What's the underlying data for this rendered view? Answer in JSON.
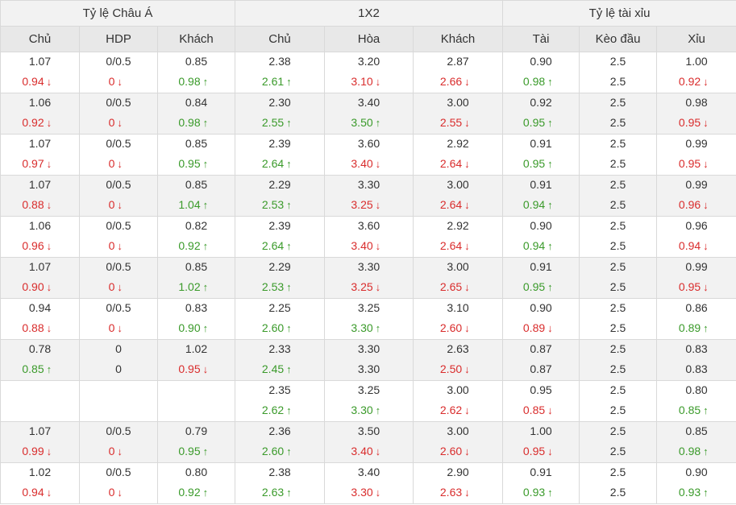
{
  "header": {
    "groups": [
      "Tỷ lệ Châu Á",
      "1X2",
      "Tỷ lệ tài xỉu"
    ],
    "columns": [
      "Chủ",
      "HDP",
      "Khách",
      "Chủ",
      "Hòa",
      "Khách",
      "Tài",
      "Kèo đầu",
      "Xỉu"
    ]
  },
  "colors": {
    "up": "#3a9a2a",
    "down": "#d92c2c",
    "odd_row": "#f2f2f2",
    "header_bg": "#e8e8e8"
  },
  "icons": {
    "up": "arrow-up-icon",
    "down": "arrow-down-icon"
  },
  "rows": [
    [
      {
        "o": "1.07",
        "c": "0.94",
        "d": "down"
      },
      {
        "o": "0/0.5",
        "c": "0",
        "d": "down"
      },
      {
        "o": "0.85",
        "c": "0.98",
        "d": "up"
      },
      {
        "o": "2.38",
        "c": "2.61",
        "d": "up"
      },
      {
        "o": "3.20",
        "c": "3.10",
        "d": "down"
      },
      {
        "o": "2.87",
        "c": "2.66",
        "d": "down"
      },
      {
        "o": "0.90",
        "c": "0.98",
        "d": "up"
      },
      {
        "o": "2.5",
        "c": "2.5",
        "d": ""
      },
      {
        "o": "1.00",
        "c": "0.92",
        "d": "down"
      }
    ],
    [
      {
        "o": "1.06",
        "c": "0.92",
        "d": "down"
      },
      {
        "o": "0/0.5",
        "c": "0",
        "d": "down"
      },
      {
        "o": "0.84",
        "c": "0.98",
        "d": "up"
      },
      {
        "o": "2.30",
        "c": "2.55",
        "d": "up"
      },
      {
        "o": "3.40",
        "c": "3.50",
        "d": "up"
      },
      {
        "o": "3.00",
        "c": "2.55",
        "d": "down"
      },
      {
        "o": "0.92",
        "c": "0.95",
        "d": "up"
      },
      {
        "o": "2.5",
        "c": "2.5",
        "d": ""
      },
      {
        "o": "0.98",
        "c": "0.95",
        "d": "down"
      }
    ],
    [
      {
        "o": "1.07",
        "c": "0.97",
        "d": "down"
      },
      {
        "o": "0/0.5",
        "c": "0",
        "d": "down"
      },
      {
        "o": "0.85",
        "c": "0.95",
        "d": "up"
      },
      {
        "o": "2.39",
        "c": "2.64",
        "d": "up"
      },
      {
        "o": "3.60",
        "c": "3.40",
        "d": "down"
      },
      {
        "o": "2.92",
        "c": "2.64",
        "d": "down"
      },
      {
        "o": "0.91",
        "c": "0.95",
        "d": "up"
      },
      {
        "o": "2.5",
        "c": "2.5",
        "d": ""
      },
      {
        "o": "0.99",
        "c": "0.95",
        "d": "down"
      }
    ],
    [
      {
        "o": "1.07",
        "c": "0.88",
        "d": "down"
      },
      {
        "o": "0/0.5",
        "c": "0",
        "d": "down"
      },
      {
        "o": "0.85",
        "c": "1.04",
        "d": "up"
      },
      {
        "o": "2.29",
        "c": "2.53",
        "d": "up"
      },
      {
        "o": "3.30",
        "c": "3.25",
        "d": "down"
      },
      {
        "o": "3.00",
        "c": "2.64",
        "d": "down"
      },
      {
        "o": "0.91",
        "c": "0.94",
        "d": "up"
      },
      {
        "o": "2.5",
        "c": "2.5",
        "d": ""
      },
      {
        "o": "0.99",
        "c": "0.96",
        "d": "down"
      }
    ],
    [
      {
        "o": "1.06",
        "c": "0.96",
        "d": "down"
      },
      {
        "o": "0/0.5",
        "c": "0",
        "d": "down"
      },
      {
        "o": "0.82",
        "c": "0.92",
        "d": "up"
      },
      {
        "o": "2.39",
        "c": "2.64",
        "d": "up"
      },
      {
        "o": "3.60",
        "c": "3.40",
        "d": "down"
      },
      {
        "o": "2.92",
        "c": "2.64",
        "d": "down"
      },
      {
        "o": "0.90",
        "c": "0.94",
        "d": "up"
      },
      {
        "o": "2.5",
        "c": "2.5",
        "d": ""
      },
      {
        "o": "0.96",
        "c": "0.94",
        "d": "down"
      }
    ],
    [
      {
        "o": "1.07",
        "c": "0.90",
        "d": "down"
      },
      {
        "o": "0/0.5",
        "c": "0",
        "d": "down"
      },
      {
        "o": "0.85",
        "c": "1.02",
        "d": "up"
      },
      {
        "o": "2.29",
        "c": "2.53",
        "d": "up"
      },
      {
        "o": "3.30",
        "c": "3.25",
        "d": "down"
      },
      {
        "o": "3.00",
        "c": "2.65",
        "d": "down"
      },
      {
        "o": "0.91",
        "c": "0.95",
        "d": "up"
      },
      {
        "o": "2.5",
        "c": "2.5",
        "d": ""
      },
      {
        "o": "0.99",
        "c": "0.95",
        "d": "down"
      }
    ],
    [
      {
        "o": "0.94",
        "c": "0.88",
        "d": "down"
      },
      {
        "o": "0/0.5",
        "c": "0",
        "d": "down"
      },
      {
        "o": "0.83",
        "c": "0.90",
        "d": "up"
      },
      {
        "o": "2.25",
        "c": "2.60",
        "d": "up"
      },
      {
        "o": "3.25",
        "c": "3.30",
        "d": "up"
      },
      {
        "o": "3.10",
        "c": "2.60",
        "d": "down"
      },
      {
        "o": "0.90",
        "c": "0.89",
        "d": "down"
      },
      {
        "o": "2.5",
        "c": "2.5",
        "d": ""
      },
      {
        "o": "0.86",
        "c": "0.89",
        "d": "up"
      }
    ],
    [
      {
        "o": "0.78",
        "c": "0.85",
        "d": "up"
      },
      {
        "o": "0",
        "c": "0",
        "d": "same"
      },
      {
        "o": "1.02",
        "c": "0.95",
        "d": "down"
      },
      {
        "o": "2.33",
        "c": "2.45",
        "d": "up"
      },
      {
        "o": "3.30",
        "c": "3.30",
        "d": "same"
      },
      {
        "o": "2.63",
        "c": "2.50",
        "d": "down"
      },
      {
        "o": "0.87",
        "c": "0.87",
        "d": "same"
      },
      {
        "o": "2.5",
        "c": "2.5",
        "d": ""
      },
      {
        "o": "0.83",
        "c": "0.83",
        "d": "same"
      }
    ],
    [
      {
        "o": "",
        "c": "",
        "d": ""
      },
      {
        "o": "",
        "c": "",
        "d": ""
      },
      {
        "o": "",
        "c": "",
        "d": ""
      },
      {
        "o": "2.35",
        "c": "2.62",
        "d": "up"
      },
      {
        "o": "3.25",
        "c": "3.30",
        "d": "up"
      },
      {
        "o": "3.00",
        "c": "2.62",
        "d": "down"
      },
      {
        "o": "0.95",
        "c": "0.85",
        "d": "down"
      },
      {
        "o": "2.5",
        "c": "2.5",
        "d": ""
      },
      {
        "o": "0.80",
        "c": "0.85",
        "d": "up"
      }
    ],
    [
      {
        "o": "1.07",
        "c": "0.99",
        "d": "down"
      },
      {
        "o": "0/0.5",
        "c": "0",
        "d": "down"
      },
      {
        "o": "0.79",
        "c": "0.95",
        "d": "up"
      },
      {
        "o": "2.36",
        "c": "2.60",
        "d": "up"
      },
      {
        "o": "3.50",
        "c": "3.40",
        "d": "down"
      },
      {
        "o": "3.00",
        "c": "2.60",
        "d": "down"
      },
      {
        "o": "1.00",
        "c": "0.95",
        "d": "down"
      },
      {
        "o": "2.5",
        "c": "2.5",
        "d": ""
      },
      {
        "o": "0.85",
        "c": "0.98",
        "d": "up"
      }
    ],
    [
      {
        "o": "1.02",
        "c": "0.94",
        "d": "down"
      },
      {
        "o": "0/0.5",
        "c": "0",
        "d": "down"
      },
      {
        "o": "0.80",
        "c": "0.92",
        "d": "up"
      },
      {
        "o": "2.38",
        "c": "2.63",
        "d": "up"
      },
      {
        "o": "3.40",
        "c": "3.30",
        "d": "down"
      },
      {
        "o": "2.90",
        "c": "2.63",
        "d": "down"
      },
      {
        "o": "0.91",
        "c": "0.93",
        "d": "up"
      },
      {
        "o": "2.5",
        "c": "2.5",
        "d": ""
      },
      {
        "o": "0.90",
        "c": "0.93",
        "d": "up"
      }
    ]
  ]
}
